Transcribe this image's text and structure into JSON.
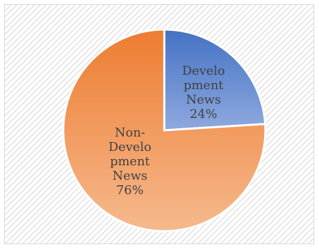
{
  "chart_data": {
    "type": "pie",
    "title": "",
    "slices": [
      {
        "label": "Development News",
        "value": 24,
        "percent_label": "24%",
        "label_lines": [
          "Develo",
          "pment",
          "News",
          "24%"
        ],
        "color_light": "#8fa9df",
        "color_dark": "#4472c4"
      },
      {
        "label": "Non-Development News",
        "value": 76,
        "percent_label": "76%",
        "label_lines": [
          "Non-",
          "Develo",
          "pment",
          "News",
          "76%"
        ],
        "color_light": "#f6b98d",
        "color_dark": "#ed7d31"
      }
    ],
    "start_angle": "12 o'clock",
    "direction": "clockwise",
    "legend": "none",
    "background": "diagonal-hatch-light-gray"
  }
}
